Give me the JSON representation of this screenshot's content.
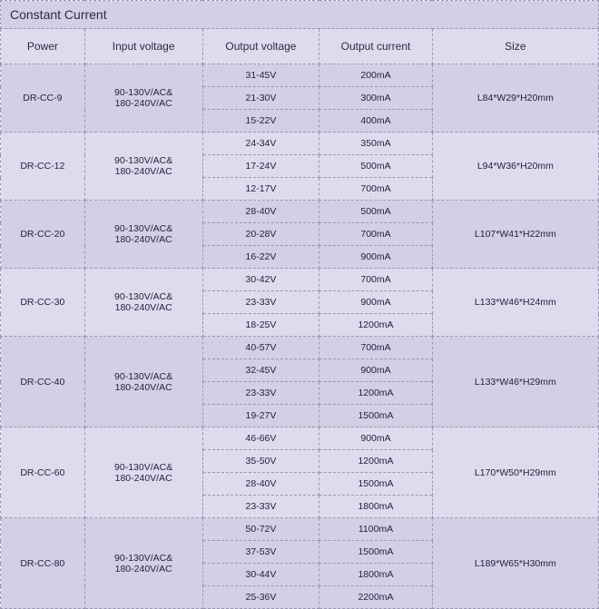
{
  "title": "Constant Current",
  "columns": [
    "Power",
    "Input voltage",
    "Output voltage",
    "Output current",
    "Size"
  ],
  "common_input": "90-130V/AC&\n180-240V/AC",
  "groups": [
    {
      "power": "DR-CC-9",
      "bg": "bg-a",
      "size": "L84*W29*H20mm",
      "rows": [
        {
          "ov": "31-45V",
          "oc": "200mA"
        },
        {
          "ov": "21-30V",
          "oc": "300mA"
        },
        {
          "ov": "15-22V",
          "oc": "400mA"
        }
      ]
    },
    {
      "power": "DR-CC-12",
      "bg": "bg-b",
      "size": "L94*W36*H20mm",
      "rows": [
        {
          "ov": "24-34V",
          "oc": "350mA"
        },
        {
          "ov": "17-24V",
          "oc": "500mA"
        },
        {
          "ov": "12-17V",
          "oc": "700mA"
        }
      ]
    },
    {
      "power": "DR-CC-20",
      "bg": "bg-a",
      "size": "L107*W41*H22mm",
      "rows": [
        {
          "ov": "28-40V",
          "oc": "500mA"
        },
        {
          "ov": "20-28V",
          "oc": "700mA"
        },
        {
          "ov": "16-22V",
          "oc": "900mA"
        }
      ]
    },
    {
      "power": "DR-CC-30",
      "bg": "bg-b",
      "size": "L133*W46*H24mm",
      "rows": [
        {
          "ov": "30-42V",
          "oc": "700mA"
        },
        {
          "ov": "23-33V",
          "oc": "900mA"
        },
        {
          "ov": "18-25V",
          "oc": "1200mA"
        }
      ]
    },
    {
      "power": "DR-CC-40",
      "bg": "bg-a",
      "size": "L133*W46*H29mm",
      "rows": [
        {
          "ov": "40-57V",
          "oc": "700mA"
        },
        {
          "ov": "32-45V",
          "oc": "900mA"
        },
        {
          "ov": "23-33V",
          "oc": "1200mA"
        },
        {
          "ov": "19-27V",
          "oc": "1500mA"
        }
      ]
    },
    {
      "power": "DR-CC-60",
      "bg": "bg-b",
      "size": "L170*W50*H29mm",
      "rows": [
        {
          "ov": "46-66V",
          "oc": "900mA"
        },
        {
          "ov": "35-50V",
          "oc": "1200mA"
        },
        {
          "ov": "28-40V",
          "oc": "1500mA"
        },
        {
          "ov": "23-33V",
          "oc": "1800mA"
        }
      ]
    },
    {
      "power": "DR-CC-80",
      "bg": "bg-a",
      "size": "L189*W65*H30mm",
      "rows": [
        {
          "ov": "50-72V",
          "oc": "1100mA"
        },
        {
          "ov": "37-53V",
          "oc": "1500mA"
        },
        {
          "ov": "30-44V",
          "oc": "1800mA"
        },
        {
          "ov": "25-36V",
          "oc": "2200mA"
        }
      ]
    }
  ]
}
